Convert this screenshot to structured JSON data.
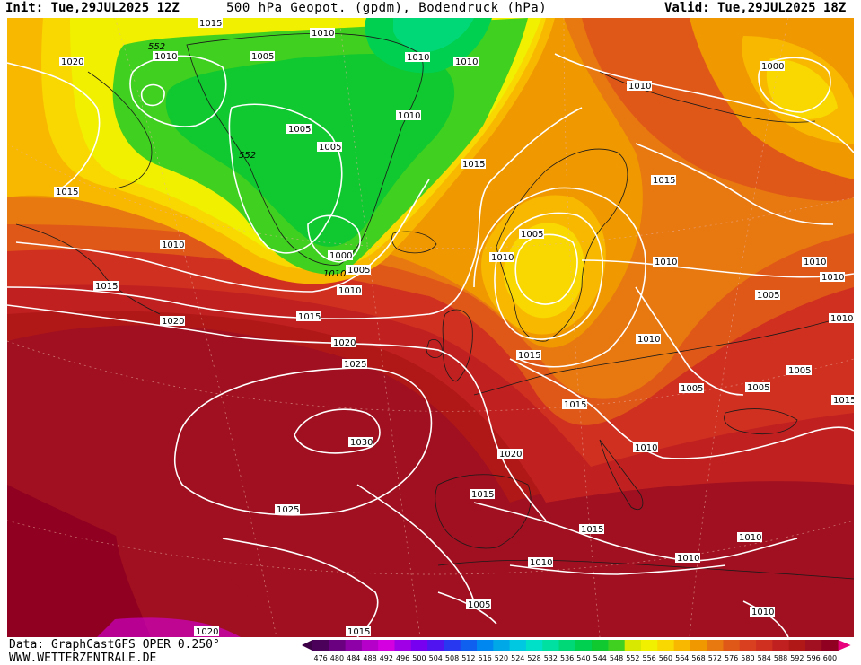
{
  "header": {
    "init": "Init: Tue,29JUL2025 12Z",
    "title": "500 hPa Geopot. (gpdm), Bodendruck (hPa)",
    "valid": "Valid: Tue,29JUL2025 18Z"
  },
  "footer": {
    "data_source": "Data: GraphCastGFS OPER 0.250°",
    "website": "WWW.WETTERZENTRALE.DE"
  },
  "colorbar": {
    "labels": [
      "476",
      "480",
      "484",
      "488",
      "492",
      "496",
      "500",
      "504",
      "508",
      "512",
      "516",
      "520",
      "524",
      "528",
      "532",
      "536",
      "540",
      "544",
      "548",
      "552",
      "556",
      "560",
      "564",
      "568",
      "572",
      "576",
      "580",
      "584",
      "588",
      "592",
      "596",
      "600"
    ],
    "colors": [
      "#4b0059",
      "#6a0080",
      "#8e00a8",
      "#b400c8",
      "#d400e0",
      "#a000e6",
      "#7800f0",
      "#5014f0",
      "#2838f0",
      "#1060f0",
      "#0088f0",
      "#00a8e8",
      "#00c8e0",
      "#00e0c8",
      "#00e0a0",
      "#00d878",
      "#00d050",
      "#10c830",
      "#40d020",
      "#d8e800",
      "#f0f000",
      "#f8d800",
      "#f8b800",
      "#f09800",
      "#e87810",
      "#e05818",
      "#d84020",
      "#d03020",
      "#c02020",
      "#b01818",
      "#a01020",
      "#900020"
    ],
    "under_color": "#3c0046",
    "over_color": "#e8007c"
  },
  "map": {
    "isobar_labels": [
      "1015",
      "1010",
      "1005",
      "1020",
      "1010",
      "1010",
      "1010",
      "1000",
      "1005",
      "1005",
      "1010",
      "1010",
      "552",
      "1010",
      "552",
      "1015",
      "1020",
      "1015",
      "1010",
      "1015",
      "1005",
      "1010",
      "1000",
      "1015",
      "1010",
      "1005",
      "1010",
      "1015",
      "1020",
      "1025",
      "1030",
      "1025",
      "1020",
      "1015",
      "1015",
      "1010",
      "1010",
      "1015",
      "1010",
      "1010",
      "1005",
      "1005",
      "1005",
      "1010",
      "1005",
      "1010",
      "1010",
      "1015",
      "1005",
      "1010",
      "1015",
      "1020",
      "1010",
      "1015"
    ]
  }
}
